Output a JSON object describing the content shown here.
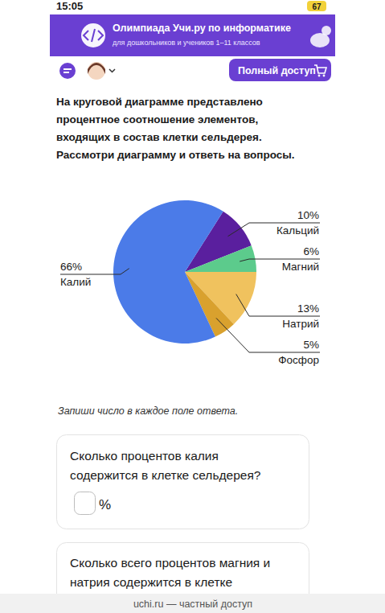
{
  "status_bar": {
    "time": "15:05",
    "battery": "67"
  },
  "banner": {
    "title": "Олимпиада Учи.ру по информатике",
    "subtitle": "для дошкольников и учеников 1–11 классов"
  },
  "toolbar": {
    "button": "Полный доступ"
  },
  "task": {
    "text": [
      "На круговой диаграмме представлено",
      "процентное соотношение элементов,",
      "входящих в состав клетки сельдерея.",
      "Рассмотри диаграмму и ответь на вопросы."
    ]
  },
  "chart_data": {
    "type": "pie",
    "categories": [
      "Кальций",
      "Магний",
      "Натрий",
      "Фосфор",
      "Калий"
    ],
    "values": [
      10,
      6,
      13,
      5,
      66
    ],
    "value_labels": [
      "10%",
      "6%",
      "13%",
      "5%",
      "66%"
    ],
    "colors": [
      "#5a1f9e",
      "#5ccb8c",
      "#f0c25e",
      "#d9a12e",
      "#4b7be8"
    ],
    "data_labels": true
  },
  "instruction": "Запиши число в каждое поле ответа.",
  "questions": [
    {
      "text": [
        "Сколько процентов калия",
        "содержится в клетке сельдерея?"
      ],
      "unit": "%"
    },
    {
      "text": [
        "Сколько всего процентов магния и",
        "натрия содержится в клетке"
      ]
    }
  ],
  "footer": "uchi.ru — частный доступ"
}
